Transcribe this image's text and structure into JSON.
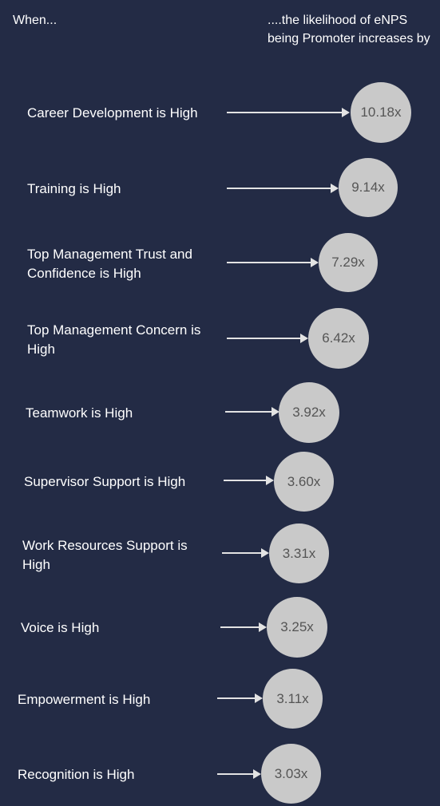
{
  "header": {
    "left": "When...",
    "right": "....the likelihood of eNPS being Promoter increases by"
  },
  "items": [
    {
      "label": "Career Development is High",
      "value": "10.18x"
    },
    {
      "label": "Training is High",
      "value": "9.14x"
    },
    {
      "label": "Top Management Trust and Confidence is High",
      "value": "7.29x"
    },
    {
      "label": "Top Management Concern is High",
      "value": "6.42x"
    },
    {
      "label": "Teamwork is High",
      "value": "3.92x"
    },
    {
      "label": "Supervisor Support is High",
      "value": "3.60x"
    },
    {
      "label": "Work Resources Support is High",
      "value": "3.31x"
    },
    {
      "label": "Voice is High",
      "value": "3.25x"
    },
    {
      "label": "Empowerment is High",
      "value": "3.11x"
    },
    {
      "label": "Recognition is High",
      "value": "3.03x"
    }
  ],
  "colors": {
    "background": "#232b45",
    "circle": "#c9c9c9",
    "circle_text": "#555555",
    "arrow": "#e3e3e3",
    "text": "#ffffff"
  }
}
